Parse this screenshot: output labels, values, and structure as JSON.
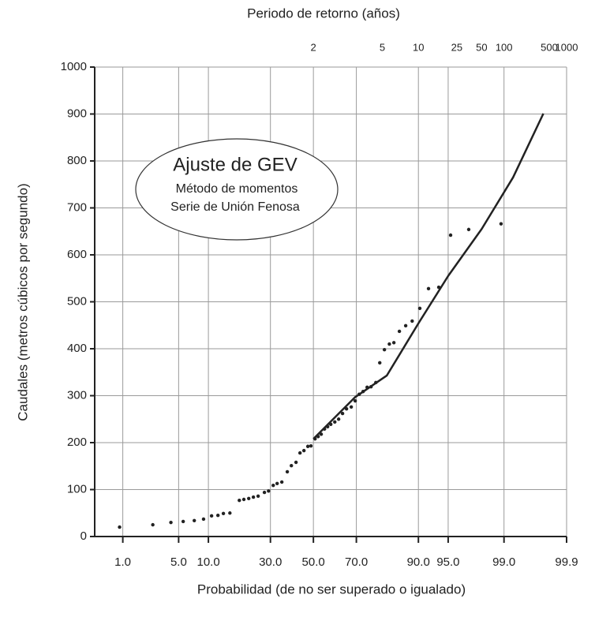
{
  "chart_data": {
    "type": "scatter",
    "x2_label": "Periodo de retorno (años)",
    "x_label": "Probabilidad (de no ser superado o igualado)",
    "y_label": "Caudales (metros cúbicos por segundo)",
    "annotations": [
      "Ajuste de GEV",
      "Método de momentos",
      "Serie de Unión Fenosa"
    ],
    "xscale": "normal-probability",
    "xlim": [
      0.38,
      99.9
    ],
    "xticks": [
      {
        "value": 1,
        "label": "1.0"
      },
      {
        "value": 5,
        "label": "5.0"
      },
      {
        "value": 10,
        "label": "10.0"
      },
      {
        "value": 30,
        "label": "30.0"
      },
      {
        "value": 50,
        "label": "50.0"
      },
      {
        "value": 70,
        "label": "70.0"
      },
      {
        "value": 90,
        "label": "90.0"
      },
      {
        "value": 95,
        "label": "95.0"
      },
      {
        "value": 99,
        "label": "99.0"
      },
      99.9
    ],
    "x2ticks": [
      2,
      5,
      10,
      25,
      50,
      100,
      500,
      1000
    ],
    "ylim": [
      0,
      1000
    ],
    "yticks": [
      0,
      100,
      200,
      300,
      400,
      500,
      600,
      700,
      800,
      900,
      1000
    ],
    "grid": true,
    "series": [
      {
        "type": "scatter",
        "color": "#222222",
        "x": [
          0.9,
          2.5,
          4.1,
          5.6,
          7.3,
          9.0,
          10.7,
          12.2,
          13.6,
          15.4,
          18.3,
          19.8,
          21.5,
          23.2,
          25.0,
          27.5,
          29.2,
          31.2,
          32.9,
          35.0,
          37.5,
          39.4,
          41.6,
          43.5,
          45.4,
          47.3,
          48.8,
          50.8,
          52.3,
          53.8,
          55.4,
          56.9,
          58.4,
          60.3,
          62.1,
          63.9,
          65.7,
          67.8,
          69.5,
          71.2,
          72.8,
          74.4,
          75.9,
          77.7,
          79.1,
          80.7,
          82.3,
          83.7,
          85.3,
          87.0,
          88.6,
          90.3,
          92.0,
          93.7,
          95.3,
          97.1,
          98.9
        ],
        "values": [
          20,
          25,
          30,
          32,
          34,
          37,
          44,
          45,
          49,
          50,
          77,
          79,
          81,
          84,
          86,
          94,
          97,
          109,
          113,
          116,
          138,
          151,
          158,
          178,
          183,
          192,
          193,
          208,
          213,
          218,
          229,
          234,
          239,
          244,
          250,
          262,
          272,
          276,
          289,
          303,
          309,
          318,
          319,
          328,
          370,
          398,
          410,
          413,
          437,
          449,
          459,
          486,
          528,
          531,
          642,
          654,
          666
        ]
      },
      {
        "type": "line",
        "color": "#222222",
        "x": [
          50,
          69.5,
          81.5,
          90,
          95,
          98,
          99.26,
          99.75
        ],
        "values": [
          208,
          297,
          343,
          454,
          555,
          655,
          765,
          901
        ]
      }
    ]
  }
}
